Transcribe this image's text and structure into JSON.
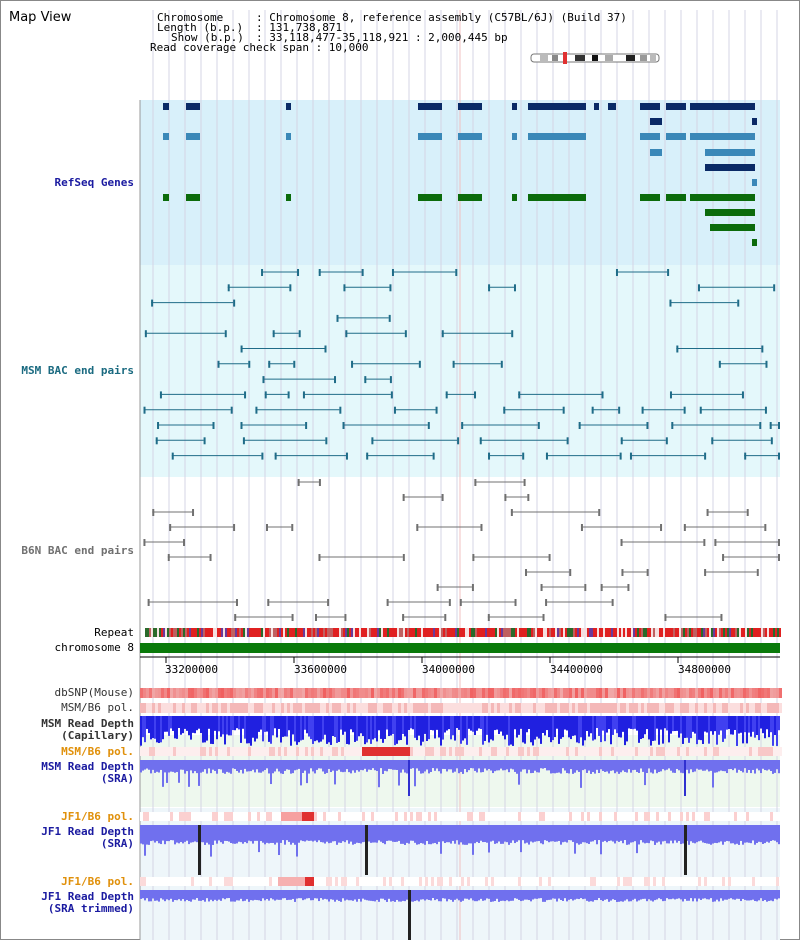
{
  "page": {
    "title": "Map View"
  },
  "header": {
    "chromosome_key": "Chromosome",
    "chromosome_val": ": Chromosome 8, reference assembly (C57BL/6J) (Build 37)",
    "length_key": "Length (b.p.)",
    "length_val": ": 131,738,871",
    "show_key": "Show (b.p.)",
    "show_val": ": 33,118,477-35,118,921 : 2,000,445 bp",
    "coverage_text": "Read coverage check span : 10,000"
  },
  "tracks": {
    "refseq": "RefSeq Genes",
    "msm_bac": "MSM BAC end pairs",
    "b6n_bac": "B6N BAC end pairs",
    "repeat": "Repeat",
    "chromosome": "chromosome 8",
    "dbsnp": "dbSNP(Mouse)",
    "msm_b6_pol_1": "MSM/B6 pol.",
    "msm_read_depth_cap_1": "MSM Read Depth",
    "msm_read_depth_cap_2": "(Capillary)",
    "msm_b6_pol_2": "MSM/B6 pol.",
    "msm_read_depth_sra_1": "MSM Read Depth",
    "msm_read_depth_sra_2": "(SRA)",
    "jf1_b6_pol_1": "JF1/B6 pol.",
    "jf1_read_depth_sra_1": "JF1 Read Depth",
    "jf1_read_depth_sra_2": "(SRA)",
    "jf1_b6_pol_2": "JF1/B6 pol.",
    "jf1_read_depth_trim_1": "JF1 Read Depth",
    "jf1_read_depth_trim_2": "(SRA trimmed)"
  },
  "axis_ticks": [
    "33200000",
    "33600000",
    "34000000",
    "34400000",
    "34800000"
  ],
  "colors": {
    "refseq_bg": "#d8f0fa",
    "bac_bg": "#e4f8fb",
    "gene_navy": "#0a2a66",
    "gene_steel": "#3a88b8",
    "gene_green": "#0b6b0b",
    "msm_bac": "#1f6c88",
    "b6n_bac": "#707070",
    "chromosome_bar": "#0a7a0a",
    "dbsnp": "#f06060",
    "depth_blue": "#2020e0",
    "depth_violet": "#7070ee",
    "label_blue": "#1a1aa0",
    "label_teal": "#1a6a80",
    "label_orange": "#e0900a"
  }
}
